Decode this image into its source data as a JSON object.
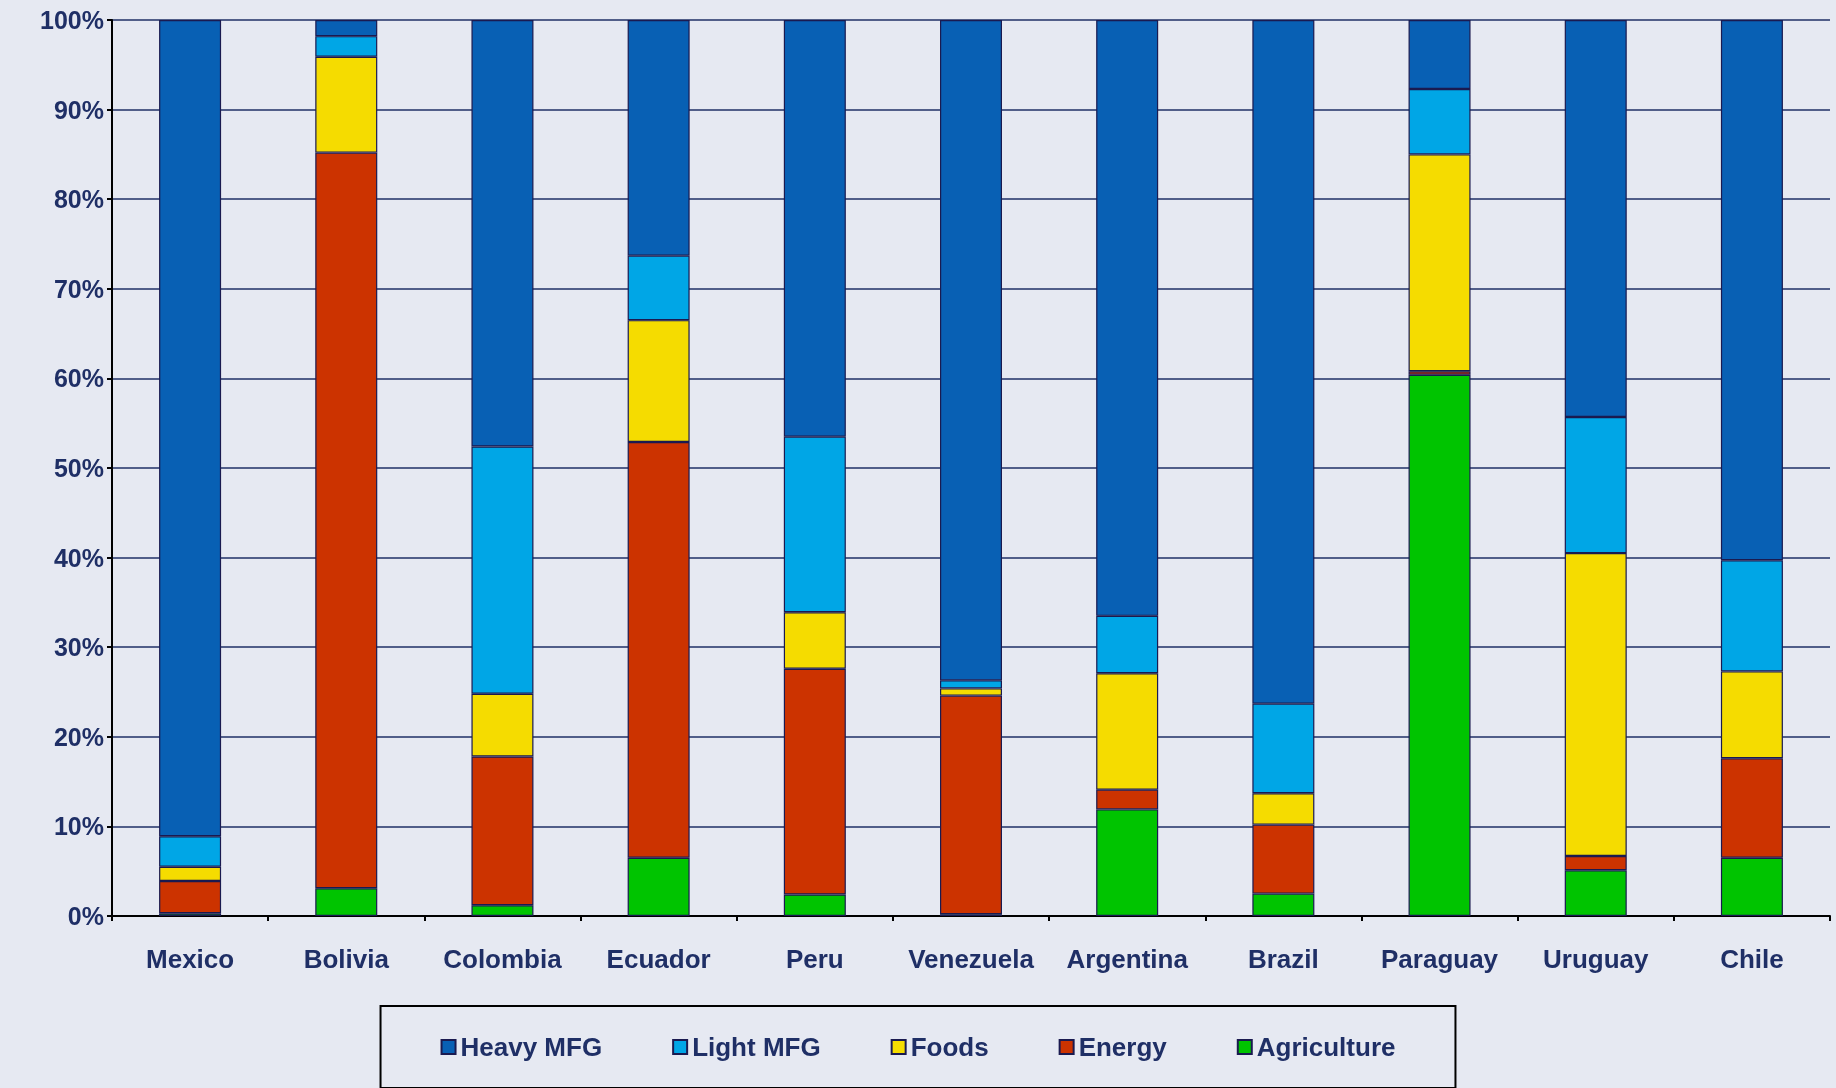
{
  "chart_data": {
    "type": "bar",
    "stacked": true,
    "categories": [
      "Mexico",
      "Bolivia",
      "Colombia",
      "Ecuador",
      "Peru",
      "Venezuela",
      "Argentina",
      "Brazil",
      "Paraguay",
      "Uruguay",
      "Chile"
    ],
    "series": [
      {
        "name": "Agriculture",
        "color": "#00c400",
        "values": [
          0.3,
          3.1,
          1.2,
          6.5,
          2.4,
          0.2,
          11.9,
          2.5,
          60.4,
          5.1,
          6.5
        ]
      },
      {
        "name": "Energy",
        "color": "#cc3300",
        "values": [
          3.6,
          82.1,
          16.6,
          46.4,
          25.2,
          24.4,
          2.2,
          7.7,
          0.4,
          1.6,
          11.1
        ]
      },
      {
        "name": "Foods",
        "color": "#f5dc00",
        "values": [
          1.6,
          10.7,
          7.0,
          13.6,
          6.3,
          0.8,
          13.0,
          3.5,
          24.2,
          33.8,
          9.7
        ]
      },
      {
        "name": "Light MFG",
        "color": "#00a6e6",
        "values": [
          3.4,
          2.3,
          27.6,
          7.2,
          19.6,
          0.9,
          6.4,
          10.0,
          7.3,
          15.2,
          12.4
        ]
      },
      {
        "name": "Heavy MFG",
        "color": "#0860b4",
        "values": [
          91.1,
          1.8,
          47.6,
          26.3,
          46.5,
          73.7,
          66.5,
          76.3,
          7.7,
          44.3,
          60.3
        ]
      }
    ],
    "ylim": [
      0,
      100
    ],
    "yticks": [
      {
        "value": 0,
        "label": "0%"
      },
      {
        "value": 10,
        "label": "10%"
      },
      {
        "value": 20,
        "label": "20%"
      },
      {
        "value": 30,
        "label": "30%"
      },
      {
        "value": 40,
        "label": "40%"
      },
      {
        "value": 50,
        "label": "50%"
      },
      {
        "value": 60,
        "label": "60%"
      },
      {
        "value": 70,
        "label": "70%"
      },
      {
        "value": 80,
        "label": "80%"
      },
      {
        "value": 90,
        "label": "90%"
      },
      {
        "value": 100,
        "label": "100%"
      }
    ],
    "grid": "y",
    "legend": "bottom"
  }
}
